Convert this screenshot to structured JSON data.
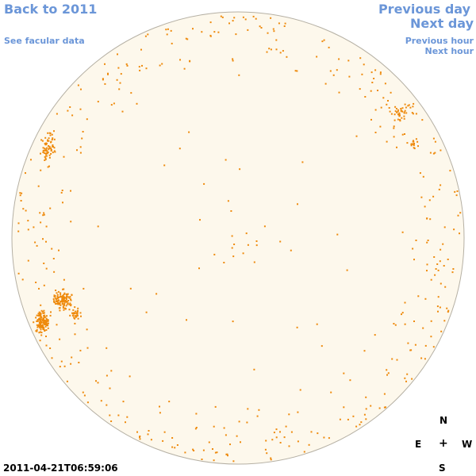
{
  "nav": {
    "back": "Back to 2011",
    "facular": "See facular data",
    "previous_day": "Previous day",
    "next_day": "Next day",
    "previous_hour": "Previous hour",
    "next_hour": "Next hour"
  },
  "timestamp": "2011-04-21T06:59:06",
  "compass": {
    "north": "N",
    "east": "E",
    "center": "+",
    "west": "W",
    "south": "S"
  },
  "colors": {
    "disk_fill": "#fdf8ec",
    "disk_edge": "#b5b0a4",
    "spot": "#ee8a0d",
    "link": "#6b96d8"
  }
}
